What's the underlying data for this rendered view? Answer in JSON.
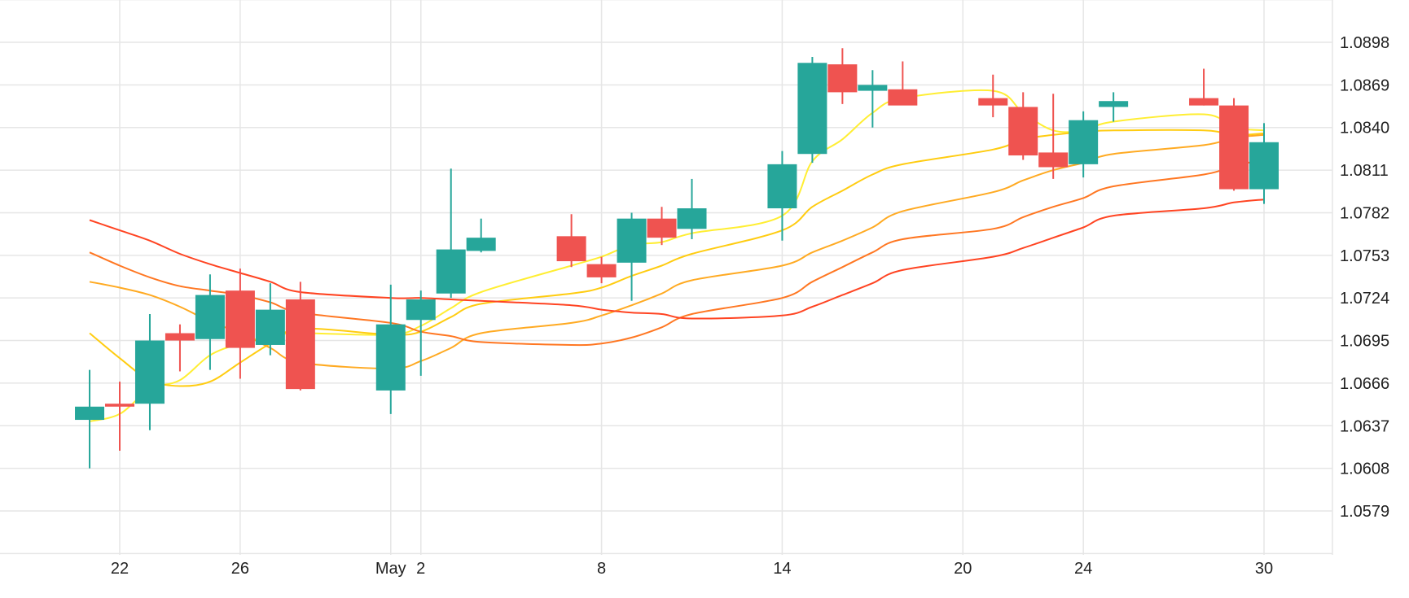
{
  "chart_data": {
    "type": "candlestick",
    "y_ticks": [
      "1.0579",
      "1.0608",
      "1.0637",
      "1.0666",
      "1.0695",
      "1.0724",
      "1.0753",
      "1.0782",
      "1.0811",
      "1.0840",
      "1.0869",
      "1.0898"
    ],
    "y_range": [
      1.055,
      1.092
    ],
    "x_labels": [
      {
        "label": "22",
        "at": "Apr 22"
      },
      {
        "label": "26",
        "at": "Apr 26"
      },
      {
        "label": "May",
        "at": "May 1"
      },
      {
        "label": "2",
        "at": "May 2"
      },
      {
        "label": "8",
        "at": "May 8"
      },
      {
        "label": "14",
        "at": "May 14"
      },
      {
        "label": "20",
        "at": "May 20"
      },
      {
        "label": "24",
        "at": "May 24"
      },
      {
        "label": "30",
        "at": "May 30"
      }
    ],
    "candles": [
      {
        "date": "Apr 21",
        "open": 1.0641,
        "high": 1.0675,
        "low": 1.0608,
        "close": 1.065
      },
      {
        "date": "Apr 22",
        "open": 1.0652,
        "high": 1.0667,
        "low": 1.062,
        "close": 1.065
      },
      {
        "date": "Apr 23",
        "open": 1.0652,
        "high": 1.0713,
        "low": 1.0634,
        "close": 1.0695
      },
      {
        "date": "Apr 24",
        "open": 1.07,
        "high": 1.0706,
        "low": 1.0674,
        "close": 1.0695
      },
      {
        "date": "Apr 25",
        "open": 1.0696,
        "high": 1.074,
        "low": 1.0675,
        "close": 1.0726
      },
      {
        "date": "Apr 26",
        "open": 1.0729,
        "high": 1.0744,
        "low": 1.0669,
        "close": 1.069
      },
      {
        "date": "Apr 27",
        "open": 1.0692,
        "high": 1.0734,
        "low": 1.0685,
        "close": 1.0716
      },
      {
        "date": "Apr 28",
        "open": 1.0723,
        "high": 1.0735,
        "low": 1.0661,
        "close": 1.0662
      },
      {
        "date": "May 1",
        "open": 1.0661,
        "high": 1.0733,
        "low": 1.0645,
        "close": 1.0706
      },
      {
        "date": "May 2",
        "open": 1.0709,
        "high": 1.0729,
        "low": 1.0671,
        "close": 1.0723
      },
      {
        "date": "May 3",
        "open": 1.0727,
        "high": 1.0812,
        "low": 1.0724,
        "close": 1.0757
      },
      {
        "date": "May 4",
        "open": 1.0756,
        "high": 1.0778,
        "low": 1.0755,
        "close": 1.0765
      },
      {
        "date": "May 7",
        "open": 1.0766,
        "high": 1.0781,
        "low": 1.0745,
        "close": 1.0749
      },
      {
        "date": "May 8",
        "open": 1.0747,
        "high": 1.0752,
        "low": 1.0734,
        "close": 1.0738
      },
      {
        "date": "May 9",
        "open": 1.0748,
        "high": 1.0782,
        "low": 1.0722,
        "close": 1.0778
      },
      {
        "date": "May 10",
        "open": 1.0778,
        "high": 1.0786,
        "low": 1.076,
        "close": 1.0765
      },
      {
        "date": "May 11",
        "open": 1.0771,
        "high": 1.0805,
        "low": 1.0764,
        "close": 1.0785
      },
      {
        "date": "May 14",
        "open": 1.0785,
        "high": 1.0824,
        "low": 1.0763,
        "close": 1.0815
      },
      {
        "date": "May 15",
        "open": 1.0822,
        "high": 1.0888,
        "low": 1.0816,
        "close": 1.0884
      },
      {
        "date": "May 16",
        "open": 1.0883,
        "high": 1.0894,
        "low": 1.0856,
        "close": 1.0864
      },
      {
        "date": "May 17",
        "open": 1.0865,
        "high": 1.0879,
        "low": 1.084,
        "close": 1.0869
      },
      {
        "date": "May 18",
        "open": 1.0866,
        "high": 1.0885,
        "low": 1.0856,
        "close": 1.0855
      },
      {
        "date": "May 21",
        "open": 1.086,
        "high": 1.0876,
        "low": 1.0847,
        "close": 1.0855
      },
      {
        "date": "May 22",
        "open": 1.0854,
        "high": 1.0864,
        "low": 1.0818,
        "close": 1.0821
      },
      {
        "date": "May 23",
        "open": 1.0823,
        "high": 1.0863,
        "low": 1.0805,
        "close": 1.0813
      },
      {
        "date": "May 24",
        "open": 1.0815,
        "high": 1.0851,
        "low": 1.0806,
        "close": 1.0845
      },
      {
        "date": "May 25",
        "open": 1.0854,
        "high": 1.0864,
        "low": 1.0844,
        "close": 1.0858
      },
      {
        "date": "May 28",
        "open": 1.086,
        "high": 1.088,
        "low": 1.0855,
        "close": 1.0855
      },
      {
        "date": "May 29",
        "open": 1.0855,
        "high": 1.086,
        "low": 1.0797,
        "close": 1.0798
      },
      {
        "date": "May 30",
        "open": 1.0798,
        "high": 1.0843,
        "low": 1.0788,
        "close": 1.083
      }
    ],
    "moving_averages": [
      {
        "color": "#ffee33",
        "values": [
          1.064,
          1.0645,
          1.0662,
          1.0668,
          1.0685,
          1.0693,
          1.0698,
          1.07,
          1.0699,
          1.0705,
          1.0717,
          1.0728,
          1.0746,
          1.0752,
          1.076,
          1.0762,
          1.0768,
          1.078,
          1.0817,
          1.0832,
          1.085,
          1.086,
          1.0865,
          1.085,
          1.0838,
          1.0838,
          1.0844,
          1.0849,
          1.084,
          1.0838
        ]
      },
      {
        "color": "#ffcc11",
        "values": [
          1.07,
          1.0683,
          1.0668,
          1.0664,
          1.0667,
          1.068,
          1.0693,
          1.0703,
          1.0699,
          1.0701,
          1.0711,
          1.072,
          1.0727,
          1.0731,
          1.0739,
          1.0746,
          1.0754,
          1.077,
          1.0786,
          1.0797,
          1.0808,
          1.0815,
          1.0825,
          1.0832,
          1.0835,
          1.0837,
          1.0838,
          1.0838,
          1.0835,
          1.0836
        ]
      },
      {
        "color": "#ffaa22",
        "values": [
          1.0735,
          1.0731,
          1.0726,
          1.0718,
          1.0708,
          1.07,
          1.069,
          1.068,
          1.0676,
          1.0681,
          1.069,
          1.07,
          1.0707,
          1.0712,
          1.0719,
          1.0727,
          1.0736,
          1.0746,
          1.0755,
          1.0763,
          1.0772,
          1.0783,
          1.0796,
          1.0804,
          1.0811,
          1.0816,
          1.0822,
          1.0828,
          1.0833,
          1.0835
        ]
      },
      {
        "color": "#ff7722",
        "values": [
          1.0755,
          1.0746,
          1.0738,
          1.0732,
          1.0729,
          1.0726,
          1.0721,
          1.0714,
          1.0707,
          1.0701,
          1.0698,
          1.0694,
          1.0692,
          1.0693,
          1.0697,
          1.0704,
          1.0713,
          1.0724,
          1.0735,
          1.0745,
          1.0755,
          1.0764,
          1.0771,
          1.0779,
          1.0786,
          1.0792,
          1.08,
          1.0808,
          1.0814,
          1.0818
        ]
      },
      {
        "color": "#ff4422",
        "values": [
          1.0777,
          1.077,
          1.0763,
          1.0754,
          1.0747,
          1.0741,
          1.0735,
          1.0728,
          1.0724,
          1.0724,
          1.0723,
          1.0722,
          1.0719,
          1.0716,
          1.0714,
          1.0713,
          1.071,
          1.0712,
          1.0718,
          1.0726,
          1.0734,
          1.0743,
          1.0752,
          1.0758,
          1.0765,
          1.0772,
          1.078,
          1.0785,
          1.0789,
          1.0791
        ]
      }
    ]
  }
}
